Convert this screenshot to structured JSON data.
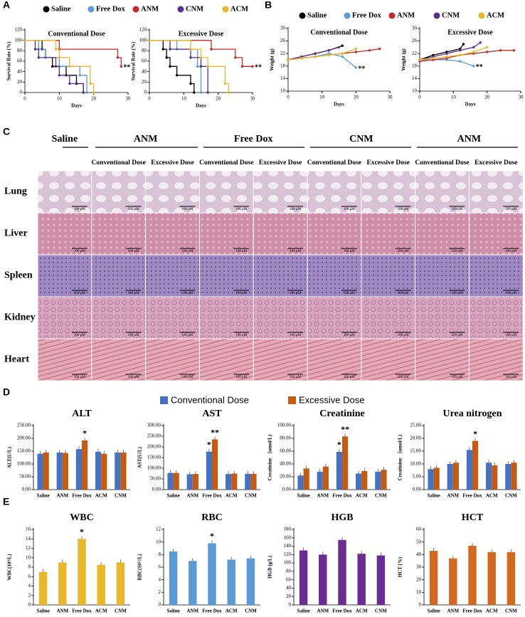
{
  "panels": [
    "A",
    "B",
    "C",
    "D",
    "E"
  ],
  "histology": {
    "groups": [
      "Saline",
      "ANM",
      "Free Dox",
      "CNM",
      "ANM"
    ],
    "doses": [
      "Conventional  Dose",
      "Excessive Dose",
      "Conventional  Dose",
      "Excessive Dose",
      "Conventional  Dose",
      "Excessive Dose",
      "Conventional  Dose",
      "Excessive Dose"
    ],
    "organs": [
      "Lung",
      "Liver",
      "Spleen",
      "Kidney",
      "Heart"
    ],
    "scale_bar": "100 μM"
  },
  "chart_data": [
    {
      "type": "step",
      "title": "Conventional Dose",
      "x_label": "Days",
      "y_label": "Survival Rate (%)",
      "xlim": [
        0,
        30
      ],
      "xticks": [
        0,
        10,
        20,
        30
      ],
      "ylim": [
        0,
        120
      ],
      "yticks": [
        0,
        20,
        40,
        60,
        80,
        100,
        120
      ],
      "series": [
        {
          "name": "Saline",
          "color": "#000000",
          "x": [
            0,
            5,
            6,
            8,
            12,
            15,
            17
          ],
          "values": [
            100,
            83,
            67,
            50,
            33,
            17,
            0
          ]
        },
        {
          "name": "Free Dox",
          "color": "#5b9bd5",
          "x": [
            0,
            4,
            6,
            10,
            16,
            18
          ],
          "values": [
            100,
            83,
            67,
            50,
            33,
            0
          ]
        },
        {
          "name": "ANM",
          "color": "#c62828",
          "x": [
            0,
            10,
            27,
            28
          ],
          "values": [
            100,
            83,
            67,
            50
          ]
        },
        {
          "name": "CNM",
          "color": "#5b2c8f",
          "x": [
            0,
            3,
            4,
            9,
            10,
            13,
            17
          ],
          "values": [
            100,
            83,
            67,
            50,
            33,
            17,
            0
          ]
        },
        {
          "name": "ACM",
          "color": "#e8b828",
          "x": [
            0,
            9,
            10,
            13,
            19,
            20
          ],
          "values": [
            100,
            83,
            67,
            50,
            17,
            0
          ]
        }
      ],
      "annotations": [
        {
          "text": "**",
          "series": "ANM"
        }
      ]
    },
    {
      "type": "step",
      "title": "Excessive Dose",
      "x_label": "Days",
      "y_label": "Survival Rate (%)",
      "xlim": [
        0,
        30
      ],
      "xticks": [
        0,
        10,
        20,
        30
      ],
      "ylim": [
        0,
        120
      ],
      "yticks": [
        0,
        20,
        40,
        60,
        80,
        100,
        120
      ],
      "series": [
        {
          "name": "Saline",
          "color": "#000000",
          "x": [
            0,
            4,
            5,
            6,
            8,
            12,
            13
          ],
          "values": [
            100,
            83,
            67,
            50,
            33,
            17,
            0
          ]
        },
        {
          "name": "Free Dox",
          "color": "#5b9bd5",
          "x": [
            0,
            8,
            14,
            15
          ],
          "values": [
            100,
            83,
            50,
            0
          ]
        },
        {
          "name": "ANM",
          "color": "#c62828",
          "x": [
            0,
            18,
            25,
            27,
            30
          ],
          "values": [
            100,
            83,
            67,
            50,
            50
          ]
        },
        {
          "name": "CNM",
          "color": "#5b2c8f",
          "x": [
            0,
            6,
            12,
            15,
            17
          ],
          "values": [
            100,
            83,
            67,
            50,
            0
          ]
        },
        {
          "name": "ACM",
          "color": "#e8b828",
          "x": [
            0,
            12,
            15,
            17,
            22,
            23
          ],
          "values": [
            100,
            83,
            67,
            50,
            17,
            0
          ]
        }
      ],
      "annotations": [
        {
          "text": "**",
          "series": "ANM"
        }
      ]
    },
    {
      "type": "line",
      "title": "Conventional Dose",
      "x_label": "Days",
      "y_label": "Weight (g)",
      "xlim": [
        0,
        30
      ],
      "xticks": [
        0,
        10,
        20,
        30
      ],
      "ylim": [
        10,
        30
      ],
      "yticks": [
        10,
        14,
        18,
        22,
        26,
        30
      ],
      "series": [
        {
          "name": "Saline",
          "color": "#000000",
          "x": [
            0,
            4,
            8,
            12,
            16
          ],
          "values": [
            20,
            21,
            22,
            23,
            24.5
          ]
        },
        {
          "name": "Free Dox",
          "color": "#5b9bd5",
          "x": [
            0,
            4,
            8,
            12,
            16,
            20
          ],
          "values": [
            20,
            20.5,
            21,
            22,
            21,
            17.5
          ]
        },
        {
          "name": "ANM",
          "color": "#c62828",
          "x": [
            0,
            4,
            8,
            12,
            16,
            20,
            24,
            27
          ],
          "values": [
            20,
            20.5,
            21,
            21.5,
            22,
            22.5,
            23,
            23.5
          ]
        },
        {
          "name": "CNM",
          "color": "#5b2c8f",
          "x": [
            0,
            4,
            8,
            12,
            15
          ],
          "values": [
            20,
            21,
            22,
            23,
            24
          ]
        },
        {
          "name": "ACM",
          "color": "#e8b828",
          "x": [
            0,
            4,
            8,
            12,
            16,
            20
          ],
          "values": [
            20,
            20.5,
            21,
            21.5,
            22,
            23.5
          ]
        }
      ],
      "annotations": [
        {
          "text": "**",
          "series": "Free Dox"
        }
      ]
    },
    {
      "type": "line",
      "title": "Excessive Dose",
      "x_label": "Days",
      "y_label": "Weight (g)",
      "xlim": [
        0,
        30
      ],
      "xticks": [
        0,
        10,
        20,
        30
      ],
      "ylim": [
        10,
        30
      ],
      "yticks": [
        10,
        14,
        18,
        22,
        26,
        30
      ],
      "series": [
        {
          "name": "Saline",
          "color": "#000000",
          "x": [
            0,
            4,
            8,
            12,
            13
          ],
          "values": [
            20,
            21.5,
            22.5,
            23.5,
            25
          ]
        },
        {
          "name": "Free Dox",
          "color": "#5b9bd5",
          "x": [
            0,
            4,
            8,
            12,
            16
          ],
          "values": [
            20,
            20,
            20,
            19.5,
            18
          ]
        },
        {
          "name": "ANM",
          "color": "#c62828",
          "x": [
            0,
            4,
            8,
            12,
            16,
            20,
            24,
            28
          ],
          "values": [
            19.5,
            20,
            20.5,
            21.5,
            22,
            22.5,
            23,
            23
          ]
        },
        {
          "name": "CNM",
          "color": "#5b2c8f",
          "x": [
            0,
            4,
            8,
            12,
            16,
            18
          ],
          "values": [
            20,
            21,
            22,
            23,
            24,
            25.5
          ]
        },
        {
          "name": "ACM",
          "color": "#e8b828",
          "x": [
            0,
            4,
            8,
            12,
            16,
            20
          ],
          "values": [
            20,
            20.5,
            21,
            21.5,
            22.5,
            24
          ]
        }
      ],
      "annotations": [
        {
          "text": "**",
          "series": "Free Dox"
        }
      ]
    },
    {
      "type": "bar",
      "title": "ALT",
      "y_label": "ALT(U/L)",
      "categories": [
        "Saline",
        "ANM",
        "Free Dox",
        "ACM",
        "CNM"
      ],
      "ylim": [
        0,
        250
      ],
      "yticks": [
        {
          "value": 0,
          "label": "0.00"
        },
        {
          "value": 50,
          "label": "50.00"
        },
        {
          "value": 100,
          "label": "100.00"
        },
        {
          "value": 150,
          "label": "150.00"
        },
        {
          "value": 200,
          "label": "200.00"
        },
        {
          "value": 250,
          "label": "250.00"
        }
      ],
      "series": [
        {
          "name": "Conventional Dose",
          "color": "#4472c4",
          "values": [
            140,
            145,
            158,
            148,
            145
          ]
        },
        {
          "name": "Excessive Dose",
          "color": "#c55a11",
          "values": [
            145,
            143,
            192,
            140,
            145
          ]
        }
      ],
      "annotations": [
        {
          "text": "*",
          "category": "Free Dox",
          "series": "Excessive Dose"
        }
      ]
    },
    {
      "type": "bar",
      "title": "AST",
      "y_label": "AST(U/L)",
      "categories": [
        "Saline",
        "ANM",
        "Free Dox",
        "ACM",
        "CNM"
      ],
      "ylim": [
        0,
        300
      ],
      "yticks": [
        {
          "value": 0,
          "label": "0.00"
        },
        {
          "value": 50,
          "label": "50.00"
        },
        {
          "value": 100,
          "label": "100.00"
        },
        {
          "value": 150,
          "label": "150.00"
        },
        {
          "value": 200,
          "label": "200.00"
        },
        {
          "value": 250,
          "label": "250.00"
        },
        {
          "value": 300,
          "label": "300.00"
        }
      ],
      "series": [
        {
          "name": "Conventional Dose",
          "color": "#4472c4",
          "values": [
            78,
            72,
            178,
            73,
            74
          ]
        },
        {
          "name": "Excessive Dose",
          "color": "#c55a11",
          "values": [
            78,
            73,
            235,
            75,
            74
          ]
        }
      ],
      "annotations": [
        {
          "text": "*",
          "category": "Free Dox",
          "series": "Conventional Dose"
        },
        {
          "text": "**",
          "category": "Free Dox",
          "series": "Excessive Dose"
        }
      ]
    },
    {
      "type": "bar",
      "title": "Creatinine",
      "y_label": "Creatinine （umol/L)",
      "categories": [
        "Saline",
        "ANM",
        "Free Dox",
        "ACM",
        "CNM"
      ],
      "ylim": [
        0,
        100
      ],
      "yticks": [
        {
          "value": 0,
          "label": "0.00"
        },
        {
          "value": 20,
          "label": "20.00"
        },
        {
          "value": 40,
          "label": "40.00"
        },
        {
          "value": 60,
          "label": "60.00"
        },
        {
          "value": 80,
          "label": "80.00"
        },
        {
          "value": 100,
          "label": "100.00"
        }
      ],
      "series": [
        {
          "name": "Conventional Dose",
          "color": "#4472c4",
          "values": [
            22,
            28,
            59,
            25,
            28
          ]
        },
        {
          "name": "Excessive Dose",
          "color": "#c55a11",
          "values": [
            33,
            36,
            83,
            29,
            31
          ]
        }
      ],
      "annotations": [
        {
          "text": "*",
          "category": "Free Dox",
          "series": "Conventional Dose"
        },
        {
          "text": "**",
          "category": "Free Dox",
          "series": "Excessive Dose"
        }
      ]
    },
    {
      "type": "bar",
      "title": "Urea nitrogen",
      "y_label": "Creatinine （umol/L)",
      "categories": [
        "Saline",
        "ANM",
        "Free Dox",
        "ACM",
        "CNM"
      ],
      "ylim": [
        0,
        25
      ],
      "yticks": [
        {
          "value": 0,
          "label": "0.00"
        },
        {
          "value": 5,
          "label": "5.00"
        },
        {
          "value": 10,
          "label": "10.00"
        },
        {
          "value": 15,
          "label": "15.00"
        },
        {
          "value": 20,
          "label": "20.00"
        },
        {
          "value": 25,
          "label": "25.00"
        }
      ],
      "series": [
        {
          "name": "Conventional Dose",
          "color": "#4472c4",
          "values": [
            8,
            10,
            15.5,
            10.5,
            10
          ]
        },
        {
          "name": "Excessive Dose",
          "color": "#c55a11",
          "values": [
            8.5,
            10.5,
            19,
            9.5,
            10.5
          ]
        }
      ],
      "annotations": [
        {
          "text": "*",
          "category": "Free Dox",
          "series": "Excessive Dose"
        }
      ]
    },
    {
      "type": "bar",
      "title": "WBC",
      "y_label": "WBC(10⁹/L)",
      "categories": [
        "Saline",
        "ANM",
        "Free Dox",
        "ACM",
        "CNM"
      ],
      "ylim": [
        0,
        16
      ],
      "yticks": [
        0,
        2,
        4,
        6,
        8,
        10,
        12,
        14,
        16
      ],
      "series": [
        {
          "color": "#e8b828",
          "values": [
            7,
            9,
            14,
            8.5,
            9
          ]
        }
      ],
      "annotations": [
        {
          "text": "*",
          "category": "Free Dox"
        }
      ]
    },
    {
      "type": "bar",
      "title": "RBC",
      "y_label": "RBC(10¹²/L)",
      "categories": [
        "Saline",
        "ANM",
        "Free Dox",
        "ACM",
        "CNM"
      ],
      "ylim": [
        0,
        12
      ],
      "yticks": [
        0,
        2,
        4,
        6,
        8,
        10,
        12
      ],
      "series": [
        {
          "color": "#5b9bd5",
          "values": [
            8.5,
            7,
            9.8,
            7.2,
            7.4
          ]
        }
      ],
      "annotations": [
        {
          "text": "*",
          "category": "Free Dox"
        }
      ]
    },
    {
      "type": "bar",
      "title": "HGB",
      "y_label": "HGB (g/L)",
      "categories": [
        "Saline",
        "ANM",
        "Free Dox",
        "ACM",
        "CNM"
      ],
      "ylim": [
        0,
        180
      ],
      "yticks": [
        0,
        20,
        40,
        60,
        80,
        100,
        120,
        140,
        160,
        180
      ],
      "series": [
        {
          "color": "#6a2c91",
          "values": [
            130,
            120,
            155,
            122,
            118
          ]
        }
      ]
    },
    {
      "type": "bar",
      "title": "HCT",
      "y_label": "HCT (%)",
      "categories": [
        "Saline",
        "ANM",
        "Free Dox",
        "ACM",
        "CNM"
      ],
      "ylim": [
        0,
        60
      ],
      "yticks": [
        0,
        10,
        20,
        30,
        40,
        50,
        60
      ],
      "series": [
        {
          "color": "#d2691e",
          "values": [
            43,
            37,
            47,
            42,
            42
          ]
        }
      ]
    }
  ]
}
